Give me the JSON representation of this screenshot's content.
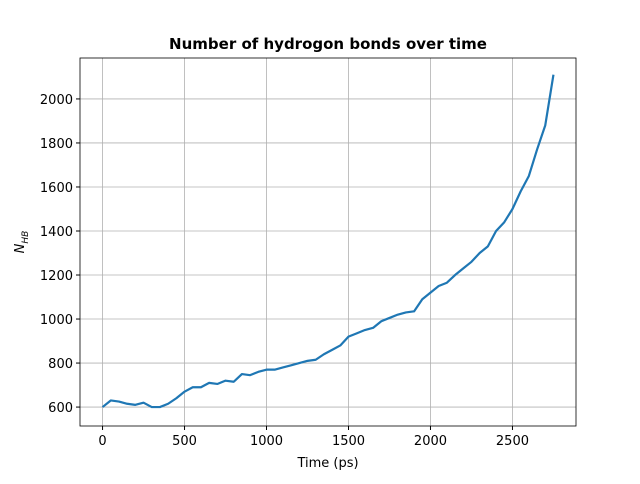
{
  "chart_data": {
    "type": "line",
    "title": "Number of hydrogon bonds over time",
    "xlabel": "Time (ps)",
    "ylabel": "N",
    "ylabel_sub": "HB",
    "x": [
      0,
      50,
      100,
      150,
      200,
      250,
      300,
      350,
      400,
      450,
      500,
      550,
      600,
      650,
      700,
      750,
      800,
      850,
      900,
      950,
      1000,
      1050,
      1100,
      1150,
      1200,
      1250,
      1300,
      1350,
      1400,
      1450,
      1500,
      1550,
      1600,
      1650,
      1700,
      1750,
      1800,
      1850,
      1900,
      1950,
      2000,
      2050,
      2100,
      2150,
      2200,
      2250,
      2300,
      2350,
      2400,
      2450,
      2500,
      2550,
      2600,
      2650,
      2700,
      2750
    ],
    "series": [
      {
        "color": "#1f77b4",
        "values": [
          600,
          630,
          625,
          615,
          610,
          620,
          600,
          600,
          615,
          640,
          670,
          690,
          690,
          710,
          705,
          720,
          715,
          750,
          745,
          760,
          770,
          770,
          780,
          790,
          800,
          810,
          815,
          840,
          860,
          880,
          920,
          935,
          950,
          960,
          990,
          1005,
          1020,
          1030,
          1035,
          1090,
          1120,
          1150,
          1165,
          1200,
          1230,
          1260,
          1300,
          1330,
          1400,
          1440,
          1500,
          1580,
          1650,
          1770,
          1880,
          2110
        ]
      }
    ],
    "xlim": [
      -137.5,
      2887.5
    ],
    "ylim": [
      514,
      2186
    ],
    "xticks": [
      0,
      500,
      1000,
      1500,
      2000,
      2500
    ],
    "yticks": [
      600,
      800,
      1000,
      1200,
      1400,
      1600,
      1800,
      2000
    ],
    "grid": true
  }
}
